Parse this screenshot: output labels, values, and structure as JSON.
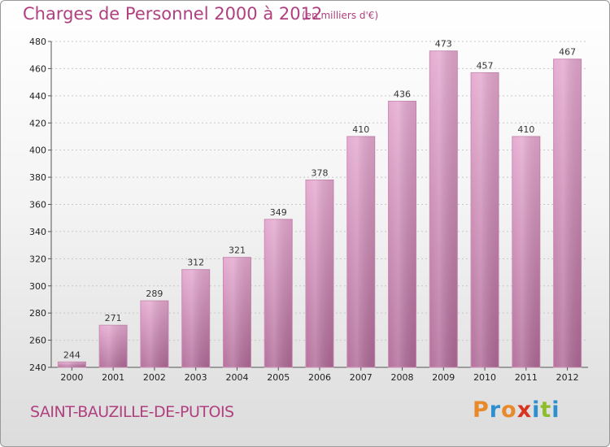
{
  "chart_data": {
    "type": "bar",
    "title": "Charges de Personnel 2000 à 2012",
    "subtitle": "(en milliers d'€)",
    "categories": [
      "2000",
      "2001",
      "2002",
      "2003",
      "2004",
      "2005",
      "2006",
      "2007",
      "2008",
      "2009",
      "2010",
      "2011",
      "2012"
    ],
    "values": [
      244,
      271,
      289,
      312,
      321,
      349,
      378,
      410,
      436,
      473,
      457,
      410,
      467
    ],
    "ylim": [
      240,
      480
    ],
    "yticks": [
      240,
      260,
      280,
      300,
      320,
      340,
      360,
      380,
      400,
      420,
      440,
      460,
      480
    ],
    "xlabel": "",
    "ylabel": "",
    "grid": true,
    "bar_color": "#d98bb8"
  },
  "footer": {
    "commune": "SAINT-BAUZILLE-DE-PUTOIS",
    "logo_letters": [
      {
        "char": "P",
        "color": "#e8892a"
      },
      {
        "char": "r",
        "color": "#2e8fd0"
      },
      {
        "char": "o",
        "color": "#e8892a"
      },
      {
        "char": "x",
        "color": "#d8331f"
      },
      {
        "char": "i",
        "color": "#2e8fd0"
      },
      {
        "char": "t",
        "color": "#8cbd2a"
      },
      {
        "char": "i",
        "color": "#2e8fd0"
      }
    ]
  }
}
